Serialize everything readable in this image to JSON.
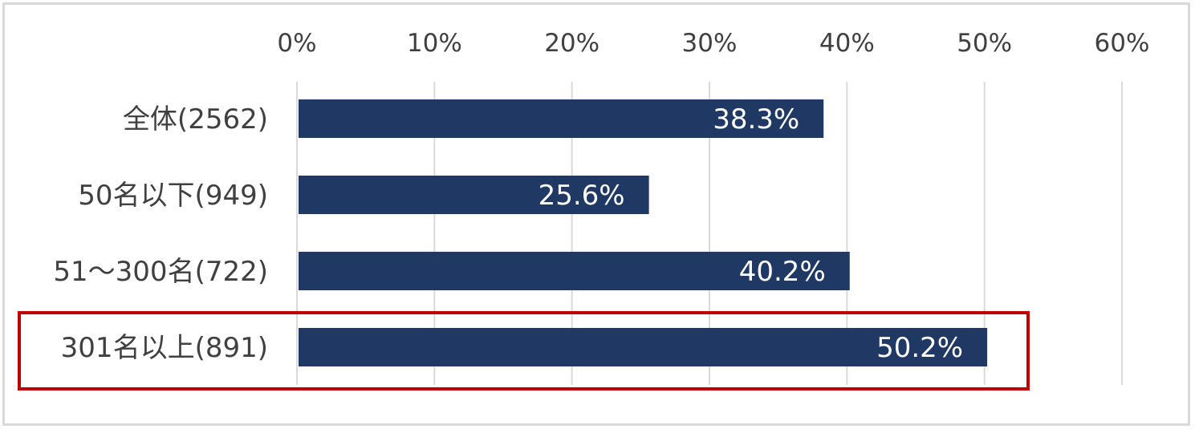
{
  "chart_data": {
    "type": "bar",
    "orientation": "horizontal",
    "categories": [
      "全体(2562)",
      "50名以下(949)",
      "51～300名(722)",
      "301名以上(891)"
    ],
    "values": [
      38.3,
      25.6,
      40.2,
      50.2
    ],
    "data_labels": [
      "38.3%",
      "25.6%",
      "40.2%",
      "50.2%"
    ],
    "xlim": [
      0,
      60
    ],
    "x_ticks": [
      0,
      10,
      20,
      30,
      40,
      50,
      60
    ],
    "x_tick_labels": [
      "0%",
      "10%",
      "20%",
      "30%",
      "40%",
      "50%",
      "60%"
    ],
    "x_axis_position": "top",
    "grid": true,
    "legend": "none",
    "highlighted_category": "301名以上(891)",
    "colors": {
      "bar": "#203864",
      "grid": "#d9d9d9",
      "highlight_box": "#c00000",
      "text": "#404040",
      "data_label": "#ffffff"
    }
  }
}
